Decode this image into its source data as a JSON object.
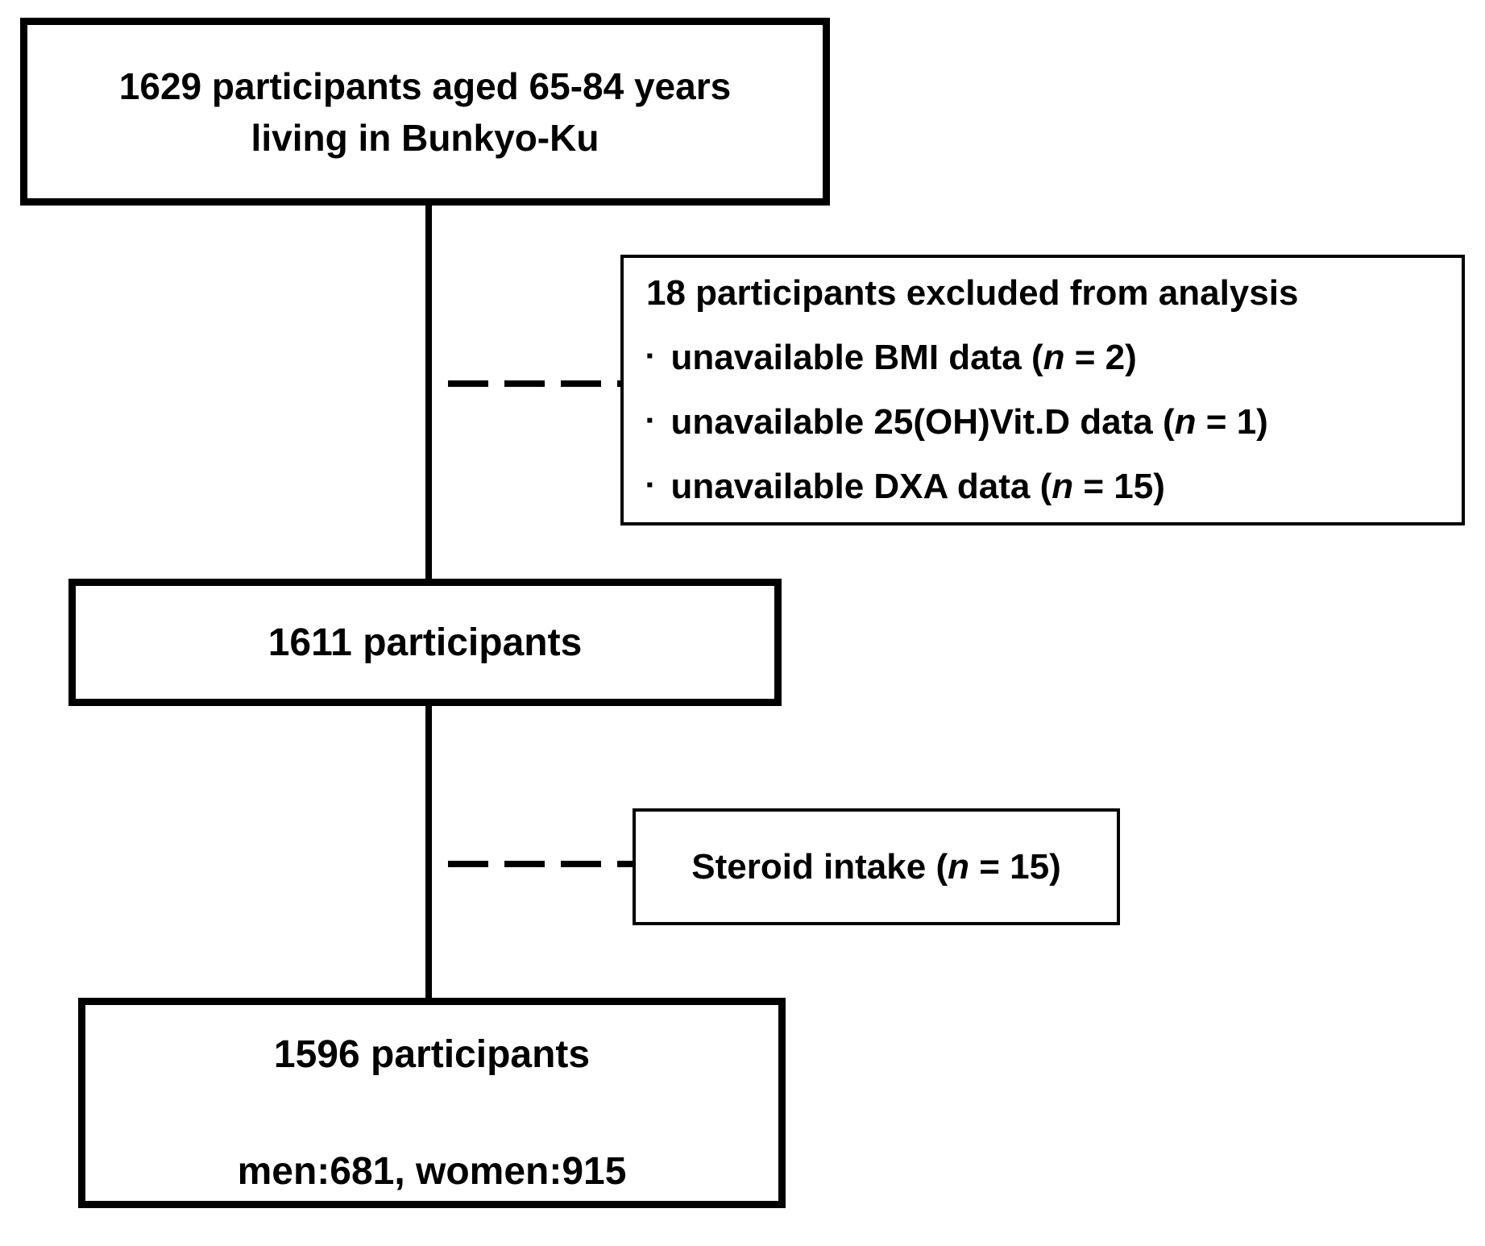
{
  "diagram": {
    "colors": {
      "border": "#000000",
      "background": "#ffffff",
      "text": "#000000"
    },
    "enrollment_box": {
      "line1": "1629 participants aged 65-84 years",
      "line2": "living in Bunkyo-Ku"
    },
    "exclusion_box": {
      "title": "18 participants excluded from analysis",
      "bullet": "▪",
      "items": [
        {
          "pre": "unavailable BMI data (",
          "var": "n",
          "post": " = 2)"
        },
        {
          "pre": "unavailable 25(OH)Vit.D data (",
          "var": "n",
          "post": " = 1)"
        },
        {
          "pre": "unavailable DXA data (",
          "var": "n",
          "post": " = 15)"
        }
      ]
    },
    "after_exclusion_box": {
      "label": "1611 participants"
    },
    "steroid_box": {
      "pre": "Steroid intake (",
      "var": "n",
      "post": " = 15)"
    },
    "final_box": {
      "line1": "1596 participants",
      "line2": "men:681, women:915"
    }
  }
}
